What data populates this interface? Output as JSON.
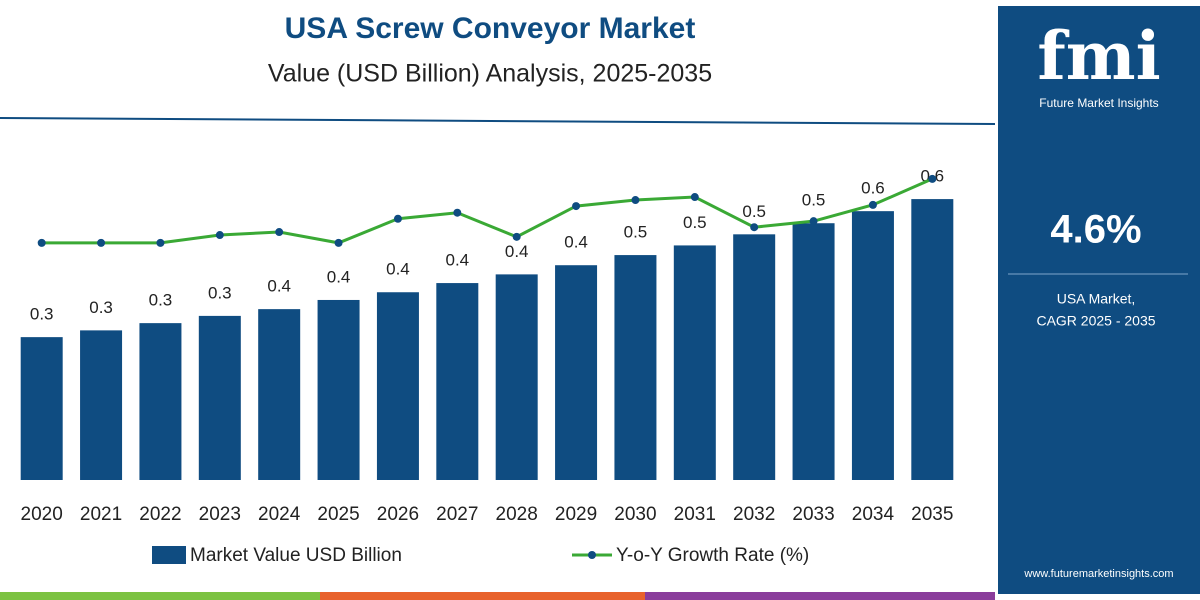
{
  "chart_data": {
    "type": "bar",
    "title": "USA Screw Conveyor Market",
    "subtitle": "Value (USD Billion) Analysis, 2025-2035",
    "categories": [
      "2020",
      "2021",
      "2022",
      "2023",
      "2024",
      "2025",
      "2026",
      "2027",
      "2028",
      "2029",
      "2030",
      "2031",
      "2032",
      "2033",
      "2034",
      "2035"
    ],
    "series": [
      {
        "name": "Market Value USD Billion",
        "color": "#0f4c81",
        "values": [
          0.296,
          0.31,
          0.325,
          0.34,
          0.354,
          0.373,
          0.389,
          0.408,
          0.426,
          0.445,
          0.466,
          0.486,
          0.509,
          0.532,
          0.557,
          0.582
        ],
        "value_labels": [
          "0.3",
          "0.3",
          "0.3",
          "0.3",
          "0.4",
          "0.4",
          "0.4",
          "0.4",
          "0.4",
          "0.4",
          "0.5",
          "0.5",
          "0.5",
          "0.5",
          "0.6",
          "0.6"
        ]
      },
      {
        "name": "Y-o-Y Growth Rate (%)",
        "color": "#3aa935",
        "type": "line",
        "axis": "y2",
        "values": [
          3.93,
          3.93,
          3.93,
          4.06,
          4.11,
          3.93,
          4.33,
          4.43,
          4.03,
          4.54,
          4.64,
          4.69,
          4.19,
          4.29,
          4.56,
          4.99
        ]
      }
    ],
    "ylim": [
      0,
      0.75
    ],
    "y2lim": [
      0,
      6
    ],
    "marker_color": "#0f4c81"
  },
  "sidebar": {
    "logo": "fmi",
    "brand": "Future Market Insights",
    "cagr": "4.6%",
    "cagr_label_1": "USA Market,",
    "cagr_label_2": "CAGR 2025 - 2035",
    "website": "www.futuremarketinsights.com"
  }
}
